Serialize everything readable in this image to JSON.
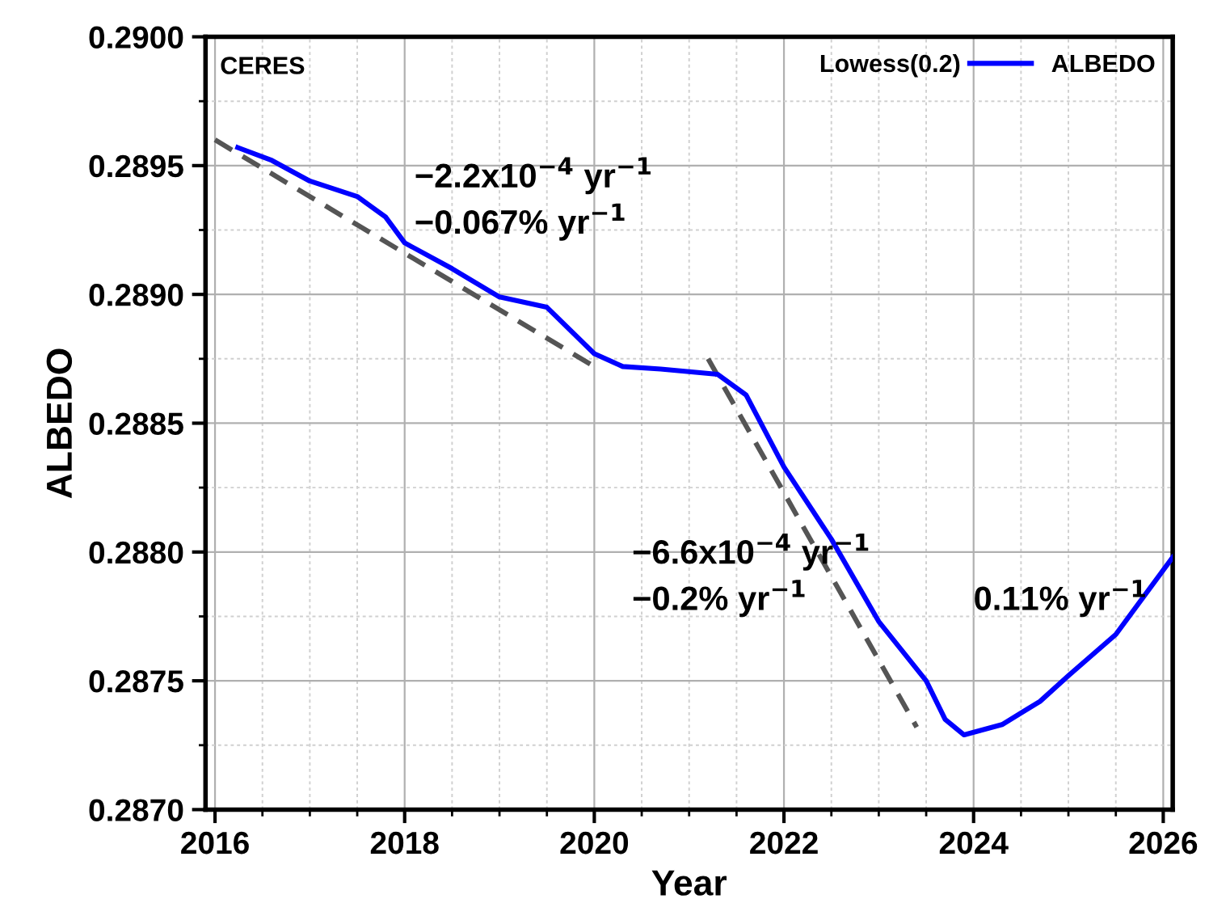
{
  "chart_data": {
    "type": "line",
    "xlabel": "Year",
    "ylabel": "ALBEDO",
    "legend_title": "Lowess(0.2)",
    "xlim": [
      2015.9,
      2026.1
    ],
    "ylim": [
      0.287,
      0.29
    ],
    "xticks": [
      2016,
      2018,
      2020,
      2022,
      2024,
      2026
    ],
    "yticks": [
      {
        "value": 0.287,
        "label": "0.2870"
      },
      {
        "value": 0.2875,
        "label": "0.2875"
      },
      {
        "value": 0.288,
        "label": "0.2880"
      },
      {
        "value": 0.2885,
        "label": "0.2885"
      },
      {
        "value": 0.289,
        "label": "0.2890"
      },
      {
        "value": 0.2895,
        "label": "0.2895"
      },
      {
        "value": 0.29,
        "label": "0.2900"
      }
    ],
    "grid": true,
    "legend": "top right",
    "series": [
      {
        "name": "ALBEDO",
        "color": "#0000ff",
        "line_style": "solid",
        "x": [
          2016.24,
          2016.6,
          2017.0,
          2017.5,
          2017.8,
          2018.0,
          2018.5,
          2019.0,
          2019.5,
          2020.0,
          2020.3,
          2020.7,
          2021.0,
          2021.3,
          2021.6,
          2022.0,
          2022.5,
          2023.0,
          2023.5,
          2023.7,
          2023.9,
          2024.3,
          2024.7,
          2025.0,
          2025.5,
          2026.1
        ],
        "values": [
          0.28957,
          0.28952,
          0.28944,
          0.28938,
          0.2893,
          0.2892,
          0.2891,
          0.28899,
          0.28895,
          0.28877,
          0.28872,
          0.28871,
          0.2887,
          0.28869,
          0.28861,
          0.28833,
          0.28805,
          0.28773,
          0.2875,
          0.28735,
          0.28729,
          0.28733,
          0.28742,
          0.28752,
          0.28768,
          0.28798
        ]
      },
      {
        "color": "#555555",
        "line_style": "dashed",
        "x": [
          2016.0,
          2020.0
        ],
        "values": [
          0.2896,
          0.28872
        ]
      },
      {
        "color": "#555555",
        "line_style": "dashed",
        "x": [
          2021.2,
          2023.4
        ],
        "values": [
          0.28875,
          0.28732
        ]
      }
    ],
    "annotations": [
      "CERES",
      "−2.2x10$^{−4}$ yr$^{−1}$",
      "−0.067% yr$^{−1}$",
      "−6.6x10$^{−4}$ yr$^{−1}$",
      "−0.2% yr$^{−1}$",
      "0.11% yr$^{−1}$"
    ]
  }
}
